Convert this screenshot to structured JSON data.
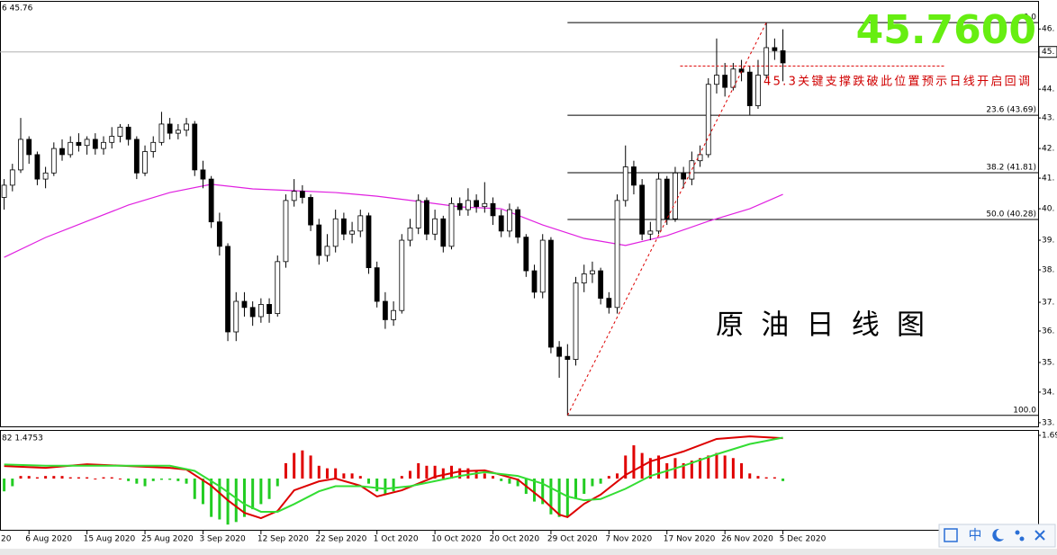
{
  "chart_data": [
    {
      "type": "candlestick",
      "header": "6 45.76",
      "xlim": [
        -0.5,
        124.8
      ],
      "xticks": [
        {
          "value": -4,
          "label": "20"
        },
        {
          "value": 3,
          "label": "6 Aug 2020"
        },
        {
          "value": 10,
          "label": "15 Aug 2020"
        },
        {
          "value": 17,
          "label": "25 Aug 2020"
        },
        {
          "value": 24,
          "label": "3 Sep 2020"
        },
        {
          "value": 31,
          "label": "12 Sep 2020"
        },
        {
          "value": 38,
          "label": "22 Sep 2020"
        },
        {
          "value": 45,
          "label": "1 Oct 2020"
        },
        {
          "value": 52,
          "label": "10 Oct 2020"
        },
        {
          "value": 59,
          "label": "20 Oct 2020"
        },
        {
          "value": 66,
          "label": "29 Oct 2020"
        },
        {
          "value": 73,
          "label": "7 Nov 2020"
        },
        {
          "value": 80,
          "label": "17 Nov 2020"
        },
        {
          "value": 87,
          "label": "26 Nov 2020"
        },
        {
          "value": 94,
          "label": "5 Dec 2020"
        }
      ],
      "ylim": [
        33.51,
        47.4
      ],
      "yticks": [
        {
          "value": 46.51,
          "label": "46."
        },
        {
          "value": 44.54,
          "label": "44."
        },
        {
          "value": 43.6,
          "label": "43."
        },
        {
          "value": 42.6,
          "label": "42."
        },
        {
          "value": 41.63,
          "label": "41."
        },
        {
          "value": 40.63,
          "label": "40."
        },
        {
          "value": 39.6,
          "label": "39."
        },
        {
          "value": 38.63,
          "label": "38."
        },
        {
          "value": 37.57,
          "label": "37."
        },
        {
          "value": 36.63,
          "label": "36."
        },
        {
          "value": 35.6,
          "label": "35."
        },
        {
          "value": 34.63,
          "label": "34."
        },
        {
          "value": 33.63,
          "label": "33."
        }
      ],
      "up_color": "#ffffff",
      "down_color": "#000000",
      "ohlc": [
        [
          41.0,
          41.6,
          40.6,
          41.4
        ],
        [
          41.4,
          42.1,
          41.2,
          41.9
        ],
        [
          41.9,
          43.6,
          41.8,
          42.9
        ],
        [
          42.9,
          43.0,
          42.1,
          42.4
        ],
        [
          42.4,
          42.5,
          41.4,
          41.6
        ],
        [
          41.6,
          42.0,
          41.3,
          41.8
        ],
        [
          41.8,
          42.8,
          41.7,
          42.6
        ],
        [
          42.6,
          42.9,
          42.2,
          42.4
        ],
        [
          42.4,
          43.0,
          42.3,
          42.8
        ],
        [
          42.8,
          43.1,
          42.5,
          42.7
        ],
        [
          42.7,
          43.0,
          42.4,
          42.9
        ],
        [
          42.9,
          43.1,
          42.4,
          42.6
        ],
        [
          42.6,
          43.0,
          42.4,
          42.8
        ],
        [
          42.8,
          43.3,
          42.6,
          43.0
        ],
        [
          43.0,
          43.4,
          42.8,
          43.3
        ],
        [
          43.3,
          43.4,
          42.7,
          42.9
        ],
        [
          42.9,
          43.0,
          41.6,
          41.8
        ],
        [
          41.8,
          42.7,
          41.7,
          42.5
        ],
        [
          42.5,
          43.0,
          42.3,
          42.8
        ],
        [
          42.8,
          43.8,
          42.7,
          43.4
        ],
        [
          43.4,
          43.6,
          42.9,
          43.1
        ],
        [
          43.1,
          43.4,
          42.9,
          43.2
        ],
        [
          43.2,
          43.6,
          43.0,
          43.4
        ],
        [
          43.4,
          43.5,
          41.7,
          41.9
        ],
        [
          41.9,
          42.2,
          41.3,
          41.6
        ],
        [
          41.6,
          41.7,
          40.0,
          40.2
        ],
        [
          40.2,
          40.5,
          39.1,
          39.4
        ],
        [
          39.4,
          39.5,
          36.3,
          36.6
        ],
        [
          36.6,
          37.9,
          36.3,
          37.6
        ],
        [
          37.6,
          37.9,
          37.1,
          37.4
        ],
        [
          37.4,
          37.6,
          36.8,
          37.1
        ],
        [
          37.1,
          37.7,
          36.9,
          37.5
        ],
        [
          37.5,
          37.7,
          36.9,
          37.2
        ],
        [
          37.2,
          39.1,
          37.1,
          38.9
        ],
        [
          38.9,
          41.1,
          38.7,
          40.9
        ],
        [
          40.9,
          41.6,
          40.7,
          41.2
        ],
        [
          41.2,
          41.4,
          40.8,
          41.0
        ],
        [
          41.0,
          41.1,
          39.9,
          40.1
        ],
        [
          40.1,
          40.3,
          38.8,
          39.1
        ],
        [
          39.1,
          39.8,
          38.9,
          39.4
        ],
        [
          39.4,
          40.6,
          39.2,
          40.3
        ],
        [
          40.3,
          40.5,
          39.6,
          39.8
        ],
        [
          39.8,
          40.2,
          39.5,
          39.9
        ],
        [
          39.9,
          40.6,
          39.7,
          40.4
        ],
        [
          40.4,
          40.5,
          38.5,
          38.7
        ],
        [
          38.7,
          38.9,
          37.4,
          37.6
        ],
        [
          37.6,
          37.9,
          36.7,
          37.0
        ],
        [
          37.0,
          37.6,
          36.8,
          37.3
        ],
        [
          37.3,
          39.8,
          37.2,
          39.6
        ],
        [
          39.6,
          40.3,
          39.4,
          40.0
        ],
        [
          40.0,
          41.1,
          39.8,
          40.9
        ],
        [
          40.9,
          41.0,
          39.6,
          39.8
        ],
        [
          39.8,
          40.6,
          39.6,
          40.3
        ],
        [
          40.3,
          40.4,
          39.2,
          39.4
        ],
        [
          39.4,
          41.0,
          39.3,
          40.8
        ],
        [
          40.8,
          41.0,
          40.4,
          40.6
        ],
        [
          40.6,
          41.3,
          40.4,
          40.9
        ],
        [
          40.9,
          41.1,
          40.5,
          40.7
        ],
        [
          40.7,
          41.5,
          40.5,
          40.8
        ],
        [
          40.8,
          41.0,
          40.1,
          40.4
        ],
        [
          40.4,
          40.6,
          39.7,
          39.9
        ],
        [
          39.9,
          40.8,
          39.7,
          40.6
        ],
        [
          40.6,
          40.7,
          39.5,
          39.7
        ],
        [
          39.7,
          39.8,
          38.4,
          38.6
        ],
        [
          38.6,
          38.8,
          37.7,
          37.9
        ],
        [
          37.9,
          39.8,
          37.7,
          39.6
        ],
        [
          39.6,
          39.7,
          35.9,
          36.1
        ],
        [
          36.1,
          36.3,
          35.1,
          35.8
        ],
        [
          35.8,
          36.2,
          33.87,
          35.7
        ],
        [
          35.7,
          38.4,
          35.5,
          38.2
        ],
        [
          38.2,
          38.8,
          37.9,
          38.5
        ],
        [
          38.5,
          38.9,
          38.2,
          38.6
        ],
        [
          38.6,
          38.7,
          37.5,
          37.7
        ],
        [
          37.7,
          37.9,
          37.2,
          37.4
        ],
        [
          37.4,
          41.1,
          37.2,
          40.9
        ],
        [
          40.9,
          42.7,
          40.7,
          42.0
        ],
        [
          42.0,
          42.2,
          41.1,
          41.4
        ],
        [
          41.4,
          41.6,
          39.6,
          39.8
        ],
        [
          39.8,
          40.2,
          39.6,
          39.9
        ],
        [
          39.9,
          41.8,
          39.8,
          41.6
        ],
        [
          41.6,
          41.7,
          40.1,
          40.3
        ],
        [
          40.3,
          42.0,
          40.2,
          41.8
        ],
        [
          41.8,
          42.0,
          41.3,
          41.6
        ],
        [
          41.6,
          42.5,
          41.4,
          42.2
        ],
        [
          42.2,
          42.7,
          42.0,
          42.4
        ],
        [
          42.4,
          44.9,
          42.3,
          44.7
        ],
        [
          44.7,
          46.2,
          44.4,
          45.0
        ],
        [
          45.0,
          45.4,
          44.3,
          44.6
        ],
        [
          44.6,
          45.4,
          44.5,
          45.2
        ],
        [
          45.2,
          45.5,
          44.8,
          45.1
        ],
        [
          45.1,
          45.3,
          43.7,
          44.0
        ],
        [
          44.0,
          45.5,
          43.9,
          45.0
        ],
        [
          45.0,
          46.72,
          44.9,
          45.9
        ],
        [
          45.9,
          46.2,
          45.5,
          45.8
        ],
        [
          45.8,
          46.5,
          44.8,
          45.4
        ]
      ],
      "ma": {
        "color": "#e020e0",
        "x": [
          0,
          5,
          10,
          15,
          20,
          25,
          30,
          35,
          40,
          45,
          50,
          55,
          60,
          65,
          70,
          75,
          80,
          85,
          90,
          94
        ],
        "values": [
          39.04,
          39.69,
          40.22,
          40.75,
          41.16,
          41.43,
          41.28,
          41.22,
          41.16,
          41.04,
          40.87,
          40.69,
          40.63,
          40.1,
          39.66,
          39.43,
          39.75,
          40.22,
          40.63,
          41.1
        ]
      },
      "bid": {
        "value": 45.76,
        "label": "45.",
        "big_label": "45.7600",
        "big_color": "#66ee11"
      },
      "trendline": {
        "color": "#dd0000",
        "x": [
          68,
          92
        ],
        "values": [
          33.87,
          46.72
        ]
      },
      "fib_levels": [
        {
          "label": "0.0",
          "value": 46.72
        },
        {
          "label": "23.6 (43.69)",
          "value": 43.69
        },
        {
          "label": "38.2 (41.81)",
          "value": 41.81
        },
        {
          "label": "50.0 (40.28)",
          "value": 40.28
        },
        {
          "label": "100.0",
          "value": 33.87
        }
      ],
      "support": {
        "color": "#dd0000",
        "value": 45.3,
        "x": [
          81.6,
          113.6
        ]
      },
      "annotation": "45.3关键支撑跌破此位置预示日线开启回调",
      "title": "原 油 日 线 图"
    },
    {
      "type": "macd",
      "header": "82 1.4753",
      "ylim": [
        -2.04,
        1.9
      ],
      "yticks": [
        {
          "value": 1.69,
          "label": "1.69"
        }
      ],
      "histogram": {
        "pos_color": "#e00000",
        "neg_color": "#22cc22",
        "values": [
          -0.5,
          -0.3,
          0.1,
          0.1,
          0.05,
          0.1,
          0.1,
          0.1,
          0.05,
          0.05,
          0.05,
          0.0,
          0.05,
          0.05,
          0.0,
          -0.1,
          -0.2,
          -0.3,
          -0.1,
          -0.05,
          -0.05,
          -0.1,
          -0.2,
          -0.8,
          -1.0,
          -1.5,
          -1.6,
          -1.8,
          -1.7,
          -1.5,
          -1.2,
          -1.0,
          -0.8,
          -0.3,
          0.6,
          1.0,
          1.1,
          0.9,
          0.5,
          0.4,
          0.4,
          0.2,
          0.2,
          0.1,
          -0.2,
          -0.5,
          -0.6,
          -0.5,
          0.1,
          0.3,
          0.6,
          0.5,
          0.5,
          0.4,
          0.5,
          0.4,
          0.4,
          0.3,
          0.2,
          0.1,
          -0.1,
          -0.2,
          -0.3,
          -0.6,
          -0.9,
          -1.0,
          -1.4,
          -1.5,
          -1.5,
          -0.8,
          -0.6,
          -0.3,
          -0.2,
          0.1,
          0.2,
          0.9,
          1.3,
          1.0,
          0.8,
          0.9,
          0.6,
          0.8,
          0.6,
          0.7,
          0.8,
          0.9,
          1.0,
          0.9,
          0.8,
          0.6,
          0.2,
          0.1,
          0.05,
          0.05,
          -0.1
        ]
      },
      "series": [
        {
          "color": "#dd0000",
          "x": [
            0,
            5,
            10,
            15,
            20,
            22,
            25,
            27,
            29,
            31,
            33,
            35,
            38,
            40,
            43,
            45,
            48,
            52,
            55,
            58,
            62,
            65,
            67,
            68,
            70,
            72,
            75,
            78,
            82,
            86,
            90,
            94
          ],
          "values": [
            0.49,
            0.42,
            0.56,
            0.49,
            0.42,
            0.35,
            -0.28,
            -0.85,
            -1.34,
            -1.55,
            -1.27,
            -0.46,
            -0.11,
            0,
            -0.28,
            -0.7,
            -0.46,
            0.07,
            0.28,
            0.32,
            -0.04,
            -0.81,
            -1.41,
            -1.51,
            -0.99,
            -0.63,
            0.14,
            0.67,
            1.06,
            1.55,
            1.65,
            1.58
          ]
        },
        {
          "color": "#33dd33",
          "x": [
            0,
            5,
            10,
            15,
            20,
            23,
            26,
            29,
            31,
            33,
            35,
            38,
            40,
            43,
            46,
            49,
            52,
            55,
            58,
            62,
            65,
            68,
            70,
            72,
            75,
            78,
            82,
            86,
            90,
            94
          ],
          "values": [
            0.55,
            0.5,
            0.5,
            0.5,
            0.5,
            0.3,
            -0.3,
            -1.0,
            -1.3,
            -1.3,
            -1.0,
            -0.5,
            -0.3,
            -0.3,
            -0.4,
            -0.3,
            -0.1,
            0.1,
            0.25,
            0.1,
            -0.2,
            -0.7,
            -0.85,
            -0.8,
            -0.4,
            0.1,
            0.5,
            0.95,
            1.35,
            1.6
          ]
        }
      ]
    }
  ],
  "toolbar": {
    "ime": "中"
  }
}
